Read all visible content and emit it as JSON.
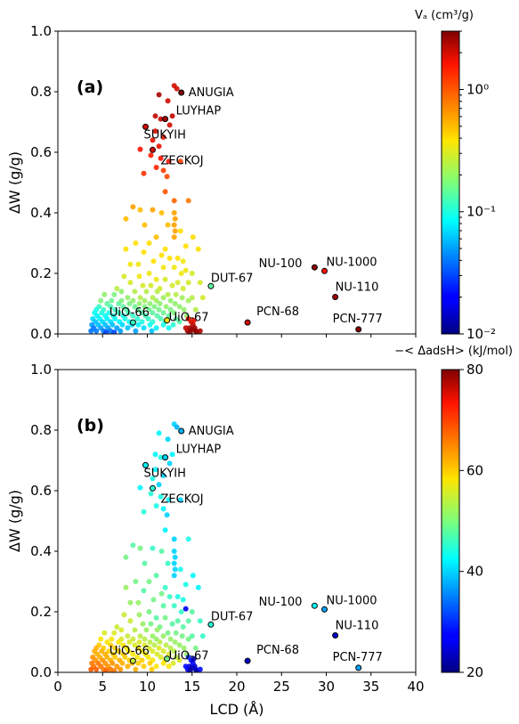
{
  "chart_data": [
    {
      "type": "scatter",
      "panel_label": "(a)",
      "xlabel": "",
      "ylabel": "ΔW (g/g)",
      "xlim": [
        0,
        40
      ],
      "ylim": [
        0.0,
        1.0
      ],
      "y_ticks": [
        "0.0",
        "0.2",
        "0.4",
        "0.6",
        "0.8",
        "1.0"
      ],
      "colorbar": {
        "label": "Vₐ (cm³/g)",
        "scale": "log",
        "range": [
          0.01,
          3
        ],
        "tick_labels": [
          "10⁻²",
          "10⁻¹",
          "10⁰"
        ],
        "tick_values": [
          0.01,
          0.1,
          1
        ]
      },
      "annotated_points": [
        {
          "name": "ANUGIA",
          "x": 13.8,
          "y": 0.797,
          "c": 3.0
        },
        {
          "name": "LUYHAP",
          "x": 12.0,
          "y": 0.71,
          "c": 2.5
        },
        {
          "name": "SUKYIH",
          "x": 9.8,
          "y": 0.684,
          "c": 2.0
        },
        {
          "name": "ZECKOJ",
          "x": 10.6,
          "y": 0.608,
          "c": 2.0
        },
        {
          "name": "DUT-67",
          "x": 17.1,
          "y": 0.158,
          "c": 0.15
        },
        {
          "name": "NU-100",
          "x": 28.7,
          "y": 0.22,
          "c": 2.8
        },
        {
          "name": "NU-1000",
          "x": 29.8,
          "y": 0.208,
          "c": 1.6
        },
        {
          "name": "NU-110",
          "x": 31.0,
          "y": 0.122,
          "c": 2.6
        },
        {
          "name": "PCN-68",
          "x": 21.2,
          "y": 0.038,
          "c": 2.0
        },
        {
          "name": "PCN-777",
          "x": 33.6,
          "y": 0.015,
          "c": 2.9
        },
        {
          "name": "UiO-66",
          "x": 8.4,
          "y": 0.038,
          "c": 0.12
        },
        {
          "name": "UiO-67",
          "x": 12.2,
          "y": 0.045,
          "c": 0.4
        }
      ]
    },
    {
      "type": "scatter",
      "panel_label": "(b)",
      "xlabel": "LCD (Å)",
      "ylabel": "ΔW (g/g)",
      "xlim": [
        0,
        40
      ],
      "ylim": [
        0.0,
        1.0
      ],
      "x_ticks": [
        "0",
        "5",
        "10",
        "15",
        "20",
        "25",
        "30",
        "35",
        "40"
      ],
      "y_ticks": [
        "0.0",
        "0.2",
        "0.4",
        "0.6",
        "0.8",
        "1.0"
      ],
      "colorbar": {
        "label": "−< ΔadsH> (kJ/mol)",
        "scale": "linear",
        "range": [
          20,
          80
        ],
        "tick_labels": [
          "20",
          "40",
          "60",
          "80"
        ],
        "tick_values": [
          20,
          40,
          60,
          80
        ]
      },
      "annotated_points": [
        {
          "name": "ANUGIA",
          "x": 13.8,
          "y": 0.797,
          "c": 38
        },
        {
          "name": "LUYHAP",
          "x": 12.0,
          "y": 0.71,
          "c": 40
        },
        {
          "name": "SUKYIH",
          "x": 9.8,
          "y": 0.684,
          "c": 42
        },
        {
          "name": "ZECKOJ",
          "x": 10.6,
          "y": 0.608,
          "c": 45
        },
        {
          "name": "DUT-67",
          "x": 17.1,
          "y": 0.158,
          "c": 45
        },
        {
          "name": "NU-100",
          "x": 28.7,
          "y": 0.22,
          "c": 43
        },
        {
          "name": "NU-1000",
          "x": 29.8,
          "y": 0.208,
          "c": 37
        },
        {
          "name": "NU-110",
          "x": 31.0,
          "y": 0.122,
          "c": 24
        },
        {
          "name": "PCN-68",
          "x": 21.2,
          "y": 0.038,
          "c": 24
        },
        {
          "name": "PCN-777",
          "x": 33.6,
          "y": 0.015,
          "c": 37
        },
        {
          "name": "UiO-66",
          "x": 8.4,
          "y": 0.038,
          "c": 55
        },
        {
          "name": "UiO-67",
          "x": 12.2,
          "y": 0.045,
          "c": 50
        }
      ]
    }
  ],
  "background_points": [
    [
      13.0,
      0.82,
      2.0,
      40
    ],
    [
      13.3,
      0.81,
      2.0,
      38
    ],
    [
      11.3,
      0.79,
      2.5,
      42
    ],
    [
      12.3,
      0.77,
      2.0,
      40
    ],
    [
      12.8,
      0.72,
      2.2,
      42
    ],
    [
      11.5,
      0.71,
      2.2,
      44
    ],
    [
      10.9,
      0.72,
      2.2,
      42
    ],
    [
      12.5,
      0.69,
      2.0,
      40
    ],
    [
      10.9,
      0.67,
      2.0,
      42
    ],
    [
      11.8,
      0.65,
      1.8,
      40
    ],
    [
      10.6,
      0.64,
      1.8,
      44
    ],
    [
      11.3,
      0.62,
      1.8,
      40
    ],
    [
      9.2,
      0.61,
      1.6,
      42
    ],
    [
      10.4,
      0.59,
      1.5,
      45
    ],
    [
      11.5,
      0.58,
      1.6,
      44
    ],
    [
      12.4,
      0.57,
      1.5,
      42
    ],
    [
      13.7,
      0.57,
      1.2,
      40
    ],
    [
      11.0,
      0.55,
      1.4,
      44
    ],
    [
      11.8,
      0.54,
      1.2,
      42
    ],
    [
      12.2,
      0.52,
      1.1,
      40
    ],
    [
      9.6,
      0.53,
      1.3,
      45
    ],
    [
      12.0,
      0.47,
      1.0,
      42
    ],
    [
      13.0,
      0.44,
      0.9,
      40
    ],
    [
      14.6,
      0.44,
      0.8,
      44
    ],
    [
      8.4,
      0.42,
      0.6,
      48
    ],
    [
      9.2,
      0.41,
      0.5,
      50
    ],
    [
      10.6,
      0.41,
      0.6,
      46
    ],
    [
      11.6,
      0.4,
      0.5,
      48
    ],
    [
      13.0,
      0.4,
      0.6,
      40
    ],
    [
      13.1,
      0.38,
      0.6,
      40
    ],
    [
      13.0,
      0.36,
      0.6,
      40
    ],
    [
      13.1,
      0.34,
      0.6,
      40
    ],
    [
      13.0,
      0.32,
      0.6,
      40
    ],
    [
      7.6,
      0.38,
      0.5,
      50
    ],
    [
      9.7,
      0.36,
      0.5,
      48
    ],
    [
      12.3,
      0.36,
      0.5,
      46
    ],
    [
      13.7,
      0.34,
      0.4,
      44
    ],
    [
      15.1,
      0.32,
      0.4,
      42
    ],
    [
      15.7,
      0.28,
      0.4,
      42
    ],
    [
      11.0,
      0.32,
      0.5,
      48
    ],
    [
      8.7,
      0.3,
      0.4,
      50
    ],
    [
      10.2,
      0.3,
      0.4,
      50
    ],
    [
      12.0,
      0.28,
      0.4,
      46
    ],
    [
      14.3,
      0.29,
      0.4,
      44
    ],
    [
      7.6,
      0.28,
      0.4,
      52
    ],
    [
      9.6,
      0.27,
      0.4,
      48
    ],
    [
      11.6,
      0.26,
      0.4,
      50
    ],
    [
      12.5,
      0.25,
      0.4,
      46
    ],
    [
      13.4,
      0.25,
      0.4,
      44
    ],
    [
      14.0,
      0.24,
      0.35,
      44
    ],
    [
      10.7,
      0.24,
      0.4,
      50
    ],
    [
      9.0,
      0.23,
      0.35,
      52
    ],
    [
      8.1,
      0.23,
      0.35,
      52
    ],
    [
      11.8,
      0.22,
      0.35,
      48
    ],
    [
      13.0,
      0.22,
      0.35,
      46
    ],
    [
      14.3,
      0.21,
      0.35,
      26
    ],
    [
      13.8,
      0.2,
      0.35,
      46
    ],
    [
      15.0,
      0.2,
      0.3,
      48
    ],
    [
      10.2,
      0.2,
      0.35,
      50
    ],
    [
      9.1,
      0.19,
      0.35,
      52
    ],
    [
      7.4,
      0.19,
      0.3,
      55
    ],
    [
      11.0,
      0.18,
      0.35,
      48
    ],
    [
      12.0,
      0.18,
      0.3,
      50
    ],
    [
      13.4,
      0.17,
      0.3,
      48
    ],
    [
      14.6,
      0.17,
      0.3,
      48
    ],
    [
      15.9,
      0.17,
      0.3,
      46
    ],
    [
      8.1,
      0.17,
      0.3,
      55
    ],
    [
      9.5,
      0.16,
      0.3,
      52
    ],
    [
      10.4,
      0.16,
      0.3,
      50
    ],
    [
      12.8,
      0.16,
      0.3,
      48
    ],
    [
      6.6,
      0.15,
      0.25,
      55
    ],
    [
      11.4,
      0.15,
      0.3,
      50
    ],
    [
      14.0,
      0.15,
      0.3,
      48
    ],
    [
      7.1,
      0.14,
      0.2,
      56
    ],
    [
      8.6,
      0.14,
      0.25,
      54
    ],
    [
      9.9,
      0.14,
      0.25,
      52
    ],
    [
      11.1,
      0.14,
      0.25,
      52
    ],
    [
      12.3,
      0.13,
      0.25,
      50
    ],
    [
      13.2,
      0.13,
      0.25,
      50
    ],
    [
      5.2,
      0.13,
      0.2,
      56
    ],
    [
      6.3,
      0.13,
      0.18,
      56
    ],
    [
      7.8,
      0.12,
      0.2,
      55
    ],
    [
      9.2,
      0.12,
      0.25,
      54
    ],
    [
      10.6,
      0.12,
      0.25,
      52
    ],
    [
      11.8,
      0.12,
      0.22,
      52
    ],
    [
      13.9,
      0.12,
      0.22,
      50
    ],
    [
      15.0,
      0.12,
      0.25,
      48
    ],
    [
      16.2,
      0.12,
      0.3,
      46
    ],
    [
      4.8,
      0.11,
      0.18,
      58
    ],
    [
      6.0,
      0.11,
      0.16,
      58
    ],
    [
      7.1,
      0.11,
      0.18,
      56
    ],
    [
      8.4,
      0.11,
      0.2,
      55
    ],
    [
      9.7,
      0.11,
      0.22,
      54
    ],
    [
      11.0,
      0.11,
      0.22,
      52
    ],
    [
      12.6,
      0.11,
      0.2,
      52
    ],
    [
      14.6,
      0.11,
      0.22,
      50
    ],
    [
      5.5,
      0.1,
      0.15,
      58
    ],
    [
      6.8,
      0.1,
      0.15,
      58
    ],
    [
      8.0,
      0.1,
      0.18,
      56
    ],
    [
      9.1,
      0.1,
      0.2,
      56
    ],
    [
      10.3,
      0.1,
      0.2,
      54
    ],
    [
      11.4,
      0.1,
      0.2,
      54
    ],
    [
      13.1,
      0.1,
      0.2,
      52
    ],
    [
      4.6,
      0.09,
      0.12,
      60
    ],
    [
      5.9,
      0.09,
      0.13,
      60
    ],
    [
      7.3,
      0.09,
      0.15,
      58
    ],
    [
      8.6,
      0.09,
      0.16,
      56
    ],
    [
      9.7,
      0.09,
      0.18,
      56
    ],
    [
      10.8,
      0.09,
      0.18,
      54
    ],
    [
      12.1,
      0.09,
      0.2,
      54
    ],
    [
      13.6,
      0.09,
      0.2,
      52
    ],
    [
      4.3,
      0.08,
      0.1,
      62
    ],
    [
      5.1,
      0.08,
      0.12,
      60
    ],
    [
      6.4,
      0.08,
      0.12,
      60
    ],
    [
      7.7,
      0.08,
      0.14,
      58
    ],
    [
      9.0,
      0.08,
      0.15,
      58
    ],
    [
      10.2,
      0.08,
      0.16,
      56
    ],
    [
      11.3,
      0.08,
      0.17,
      56
    ],
    [
      12.6,
      0.08,
      0.18,
      54
    ],
    [
      14.1,
      0.08,
      0.2,
      52
    ],
    [
      15.4,
      0.08,
      0.25,
      50
    ],
    [
      4.1,
      0.07,
      0.09,
      62
    ],
    [
      4.9,
      0.07,
      0.1,
      62
    ],
    [
      5.7,
      0.07,
      0.1,
      60
    ],
    [
      6.8,
      0.07,
      0.12,
      60
    ],
    [
      7.9,
      0.07,
      0.13,
      58
    ],
    [
      9.4,
      0.07,
      0.14,
      58
    ],
    [
      10.6,
      0.07,
      0.15,
      56
    ],
    [
      11.8,
      0.07,
      0.16,
      56
    ],
    [
      13.0,
      0.07,
      0.18,
      54
    ],
    [
      4.4,
      0.06,
      0.08,
      62
    ],
    [
      5.3,
      0.06,
      0.09,
      62
    ],
    [
      6.2,
      0.06,
      0.1,
      60
    ],
    [
      7.3,
      0.06,
      0.1,
      60
    ],
    [
      8.4,
      0.06,
      0.12,
      58
    ],
    [
      9.8,
      0.06,
      0.13,
      58
    ],
    [
      11.1,
      0.06,
      0.14,
      56
    ],
    [
      12.4,
      0.06,
      0.15,
      56
    ],
    [
      14.4,
      0.06,
      0.2,
      52
    ],
    [
      3.9,
      0.05,
      0.07,
      64
    ],
    [
      4.7,
      0.05,
      0.08,
      62
    ],
    [
      5.5,
      0.05,
      0.08,
      62
    ],
    [
      6.4,
      0.05,
      0.09,
      60
    ],
    [
      7.5,
      0.05,
      0.1,
      60
    ],
    [
      8.9,
      0.05,
      0.11,
      58
    ],
    [
      10.1,
      0.05,
      0.12,
      58
    ],
    [
      11.5,
      0.05,
      0.13,
      56
    ],
    [
      13.2,
      0.05,
      0.15,
      54
    ],
    [
      4.2,
      0.04,
      0.06,
      64
    ],
    [
      5.0,
      0.04,
      0.07,
      64
    ],
    [
      5.9,
      0.04,
      0.07,
      62
    ],
    [
      6.9,
      0.04,
      0.08,
      62
    ],
    [
      8.0,
      0.04,
      0.09,
      60
    ],
    [
      9.4,
      0.04,
      0.1,
      60
    ],
    [
      10.6,
      0.04,
      0.11,
      58
    ],
    [
      12.0,
      0.04,
      0.12,
      58
    ],
    [
      13.6,
      0.04,
      0.14,
      56
    ],
    [
      3.8,
      0.03,
      0.05,
      66
    ],
    [
      4.5,
      0.03,
      0.06,
      66
    ],
    [
      5.3,
      0.03,
      0.06,
      64
    ],
    [
      6.1,
      0.03,
      0.06,
      64
    ],
    [
      7.2,
      0.03,
      0.07,
      62
    ],
    [
      8.3,
      0.03,
      0.07,
      62
    ],
    [
      9.0,
      0.03,
      0.08,
      60
    ],
    [
      10.3,
      0.03,
      0.09,
      60
    ],
    [
      11.8,
      0.03,
      0.1,
      58
    ],
    [
      12.9,
      0.03,
      0.11,
      56
    ],
    [
      4.0,
      0.02,
      0.04,
      66
    ],
    [
      4.8,
      0.02,
      0.05,
      66
    ],
    [
      5.6,
      0.02,
      0.05,
      64
    ],
    [
      6.6,
      0.02,
      0.05,
      64
    ],
    [
      7.8,
      0.02,
      0.06,
      62
    ],
    [
      9.6,
      0.02,
      0.07,
      60
    ],
    [
      11.0,
      0.02,
      0.08,
      58
    ],
    [
      12.4,
      0.02,
      0.09,
      58
    ],
    [
      3.7,
      0.01,
      0.04,
      68
    ],
    [
      4.3,
      0.01,
      0.04,
      68
    ],
    [
      5.1,
      0.01,
      0.04,
      66
    ],
    [
      5.9,
      0.01,
      0.04,
      66
    ],
    [
      7.0,
      0.01,
      0.05,
      64
    ],
    [
      8.7,
      0.01,
      0.05,
      62
    ],
    [
      10.5,
      0.01,
      0.06,
      60
    ],
    [
      6.3,
      0.005,
      0.03,
      66
    ],
    [
      5.4,
      0.005,
      0.03,
      68
    ],
    [
      14.7,
      0.02,
      2.5,
      24
    ],
    [
      15.0,
      0.015,
      2.8,
      22
    ],
    [
      15.3,
      0.02,
      2.6,
      24
    ],
    [
      14.5,
      0.01,
      2.5,
      26
    ],
    [
      15.4,
      0.01,
      2.8,
      24
    ],
    [
      14.8,
      0.005,
      2.8,
      22
    ],
    [
      15.1,
      0.03,
      2.4,
      26
    ],
    [
      14.3,
      0.02,
      2.2,
      28
    ],
    [
      15.5,
      0.005,
      2.7,
      22
    ],
    [
      14.9,
      0.04,
      2.0,
      26
    ],
    [
      15.9,
      0.01,
      2.5,
      28
    ],
    [
      15.2,
      0.045,
      1.8,
      22
    ],
    [
      14.6,
      0.05,
      1.8,
      30
    ]
  ]
}
